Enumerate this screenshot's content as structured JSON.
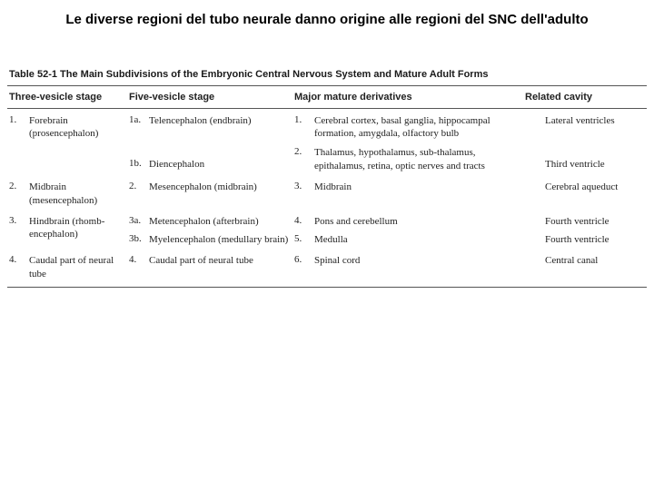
{
  "title": "Le diverse regioni del tubo neurale danno origine alle regioni del SNC dell'adulto",
  "table_label": "Table 52-1 The Main Subdivisions of the Embryonic Central Nervous System and Mature Adult Forms",
  "headers": {
    "c1": "Three-vesicle stage",
    "c2": "Five-vesicle stage",
    "c3": "Major mature derivatives",
    "c4": "Related cavity"
  },
  "rows": [
    {
      "c1": [
        {
          "n": "1.",
          "t": "Forebrain (prosencephalon)"
        }
      ],
      "c2": [
        {
          "n": "1a.",
          "t": "Telencephalon (endbrain)"
        },
        {
          "n": "1b.",
          "t": "Diencephalon"
        }
      ],
      "c3": [
        {
          "n": "1.",
          "t": "Cerebral cortex, basal ganglia, hippocampal formation, amygdala, olfactory bulb"
        },
        {
          "n": "2.",
          "t": "Thalamus, hypothalamus, sub-thalamus, epithalamus, retina, optic nerves and tracts"
        }
      ],
      "c4": [
        {
          "n": "",
          "t": "Lateral ventricles"
        },
        {
          "n": "",
          "t": "Third ventricle"
        }
      ]
    },
    {
      "c1": [
        {
          "n": "2.",
          "t": "Midbrain (mesencephalon)"
        }
      ],
      "c2": [
        {
          "n": "2.",
          "t": "Mesencephalon (midbrain)"
        }
      ],
      "c3": [
        {
          "n": "3.",
          "t": "Midbrain"
        }
      ],
      "c4": [
        {
          "n": "",
          "t": "Cerebral aqueduct"
        }
      ]
    },
    {
      "c1": [
        {
          "n": "3.",
          "t": "Hindbrain (rhomb-encephalon)"
        }
      ],
      "c2": [
        {
          "n": "3a.",
          "t": "Metencephalon (afterbrain)"
        },
        {
          "n": "3b.",
          "t": "Myelencephalon (medullary brain)"
        }
      ],
      "c3": [
        {
          "n": "4.",
          "t": "Pons and cerebellum"
        },
        {
          "n": "5.",
          "t": "Medulla"
        }
      ],
      "c4": [
        {
          "n": "",
          "t": "Fourth ventricle"
        },
        {
          "n": "",
          "t": "Fourth ventricle"
        }
      ]
    },
    {
      "c1": [
        {
          "n": "4.",
          "t": "Caudal part of neural tube"
        }
      ],
      "c2": [
        {
          "n": "4.",
          "t": "Caudal part of neural tube"
        }
      ],
      "c3": [
        {
          "n": "6.",
          "t": "Spinal cord"
        }
      ],
      "c4": [
        {
          "n": "",
          "t": "Central canal"
        }
      ]
    }
  ]
}
